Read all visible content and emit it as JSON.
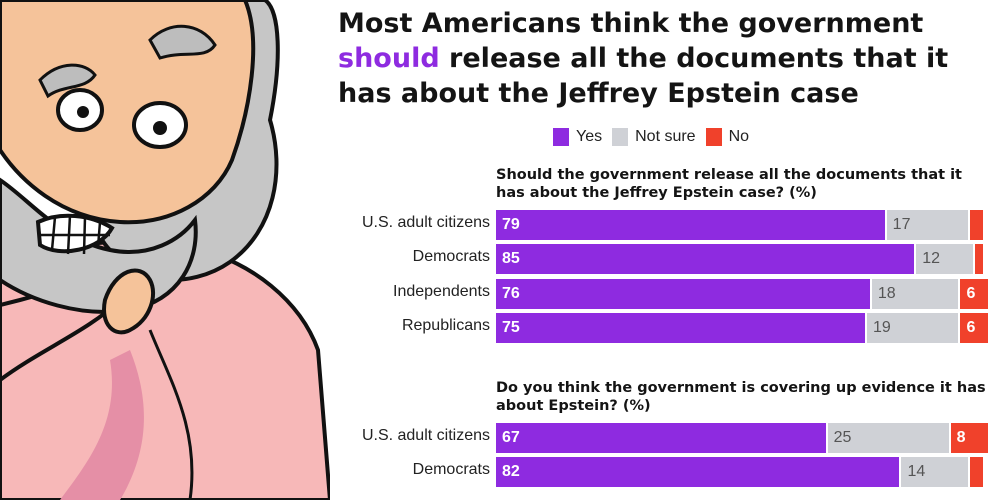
{
  "title": {
    "line1": "Most Americans think the government",
    "highlight": "should",
    "line2_rest": " release all the documents that it",
    "line3": "has about the Jeffrey Epstein case"
  },
  "legend": [
    {
      "label": "Yes",
      "color": "#8e2be0"
    },
    {
      "label": "Not sure",
      "color": "#cfd1d6"
    },
    {
      "label": "No",
      "color": "#f0412b"
    }
  ],
  "illustration": {
    "icon": "cartoon-bearded-man-thinking"
  },
  "chart_data": [
    {
      "type": "bar",
      "orientation": "horizontal-stacked",
      "title": "Should the government release all the documents that it has about the Jeffrey Epstein case? (%)",
      "categories": [
        "U.S. adult citizens",
        "Democrats",
        "Independents",
        "Republicans"
      ],
      "series": [
        {
          "name": "Yes",
          "values": [
            79,
            85,
            76,
            75
          ],
          "labels": [
            "79",
            "85",
            "76",
            "75"
          ]
        },
        {
          "name": "Not sure",
          "values": [
            17,
            12,
            18,
            19
          ],
          "labels": [
            "17",
            "12",
            "18",
            "19"
          ]
        },
        {
          "name": "No",
          "values": [
            3,
            2,
            6,
            6
          ],
          "labels": [
            "",
            "",
            "6",
            "6"
          ]
        }
      ],
      "xlim": [
        0,
        100
      ]
    },
    {
      "type": "bar",
      "orientation": "horizontal-stacked",
      "title": "Do you think the government is covering up evidence it has about Epstein? (%)",
      "categories": [
        "U.S. adult citizens",
        "Democrats"
      ],
      "series": [
        {
          "name": "Yes",
          "values": [
            67,
            82
          ],
          "labels": [
            "67",
            "82"
          ]
        },
        {
          "name": "Not sure",
          "values": [
            25,
            14
          ],
          "labels": [
            "25",
            "14"
          ]
        },
        {
          "name": "No",
          "values": [
            8,
            3
          ],
          "labels": [
            "8",
            ""
          ]
        }
      ],
      "xlim": [
        0,
        100
      ]
    }
  ]
}
